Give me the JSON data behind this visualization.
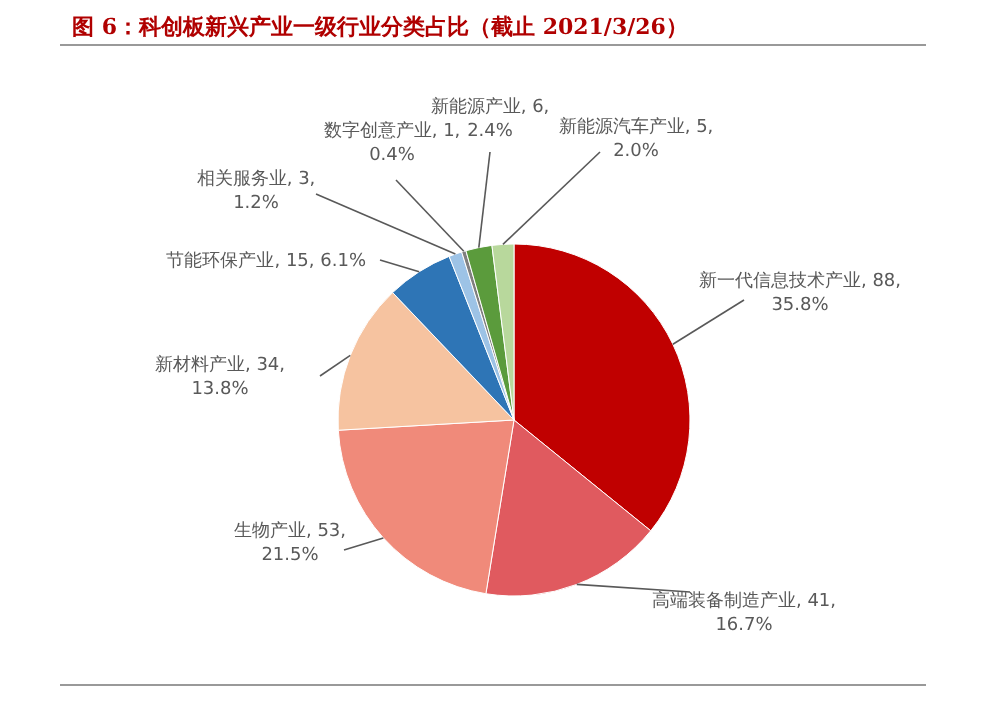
{
  "chart_data": {
    "type": "pie",
    "title": "图 6：科创板新兴产业一级行业分类占比（截止 2021/3/26）",
    "categories": [
      "新一代信息技术产业",
      "高端装备制造产业",
      "生物产业",
      "新材料产业",
      "节能环保产业",
      "相关服务业",
      "数字创意产业",
      "新能源产业",
      "新能源汽车产业"
    ],
    "values": [
      35.8,
      16.7,
      21.5,
      13.8,
      6.1,
      1.2,
      0.4,
      2.4,
      2.0
    ],
    "value_labels": [
      "88, 35.8%",
      "41, 16.7%",
      "53, 21.5%",
      "34, 13.8%",
      "15, 6.1%",
      "3, 1.2%",
      "1, 0.4%",
      "6, 2.4%",
      "5, 2.0%"
    ],
    "colors": [
      "#c00000",
      "#e05a5f",
      "#f08a7a",
      "#f6c3a0",
      "#2e75b6",
      "#9dc3e6",
      "#7f7f7f",
      "#5b9b3c",
      "#b8d89c"
    ]
  }
}
